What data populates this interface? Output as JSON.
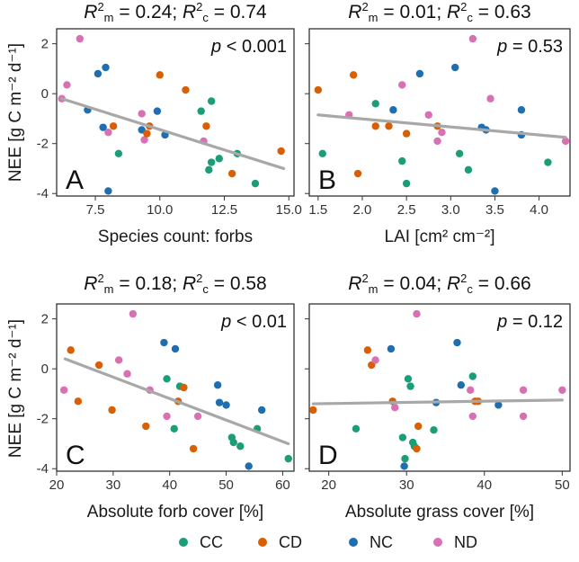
{
  "legend": [
    {
      "key": "CC",
      "label": "CC",
      "color": "#1b9e77"
    },
    {
      "key": "CD",
      "label": "CD",
      "color": "#d95f02"
    },
    {
      "key": "NC",
      "label": "NC",
      "color": "#1f6fb0"
    },
    {
      "key": "ND",
      "label": "ND",
      "color": "#d871b4"
    }
  ],
  "y_label": "NEE [g C m⁻² d⁻¹]",
  "chart_data": [
    {
      "id": "A",
      "type": "scatter",
      "panel_letter": "A",
      "r2_marginal": "0.24",
      "r2_conditional": "0.74",
      "p_label": "p < 0.001",
      "xlabel": "Species count: forbs",
      "ylabel": "NEE [g C m⁻² d⁻¹]",
      "xlim": [
        6,
        15.2
      ],
      "ylim": [
        -4.1,
        2.6
      ],
      "xticks": [
        7.5,
        10.0,
        12.5,
        15.0
      ],
      "xtick_labels": [
        "7.5",
        "10.0",
        "12.5",
        "15.0"
      ],
      "yticks": [
        -4,
        -2,
        0,
        2
      ],
      "ytick_labels": [
        "-4",
        "-2",
        "0",
        "2"
      ],
      "trend": {
        "x": [
          6.2,
          14.8
        ],
        "y": [
          -0.2,
          -3.0
        ]
      },
      "points": [
        {
          "group": "ND",
          "x": 6.9,
          "y": 2.2
        },
        {
          "group": "ND",
          "x": 6.4,
          "y": 0.35
        },
        {
          "group": "ND",
          "x": 6.2,
          "y": -0.2
        },
        {
          "group": "NC",
          "x": 7.6,
          "y": 0.8
        },
        {
          "group": "NC",
          "x": 7.9,
          "y": 1.05
        },
        {
          "group": "NC",
          "x": 7.2,
          "y": -0.65
        },
        {
          "group": "NC",
          "x": 7.8,
          "y": -1.35
        },
        {
          "group": "ND",
          "x": 8.0,
          "y": -1.55
        },
        {
          "group": "CD",
          "x": 8.2,
          "y": -1.3
        },
        {
          "group": "CC",
          "x": 8.4,
          "y": -2.4
        },
        {
          "group": "NC",
          "x": 8.0,
          "y": -3.9
        },
        {
          "group": "ND",
          "x": 9.3,
          "y": -0.8
        },
        {
          "group": "NC",
          "x": 9.3,
          "y": -1.45
        },
        {
          "group": "ND",
          "x": 9.4,
          "y": -1.85
        },
        {
          "group": "CD",
          "x": 9.6,
          "y": -1.3
        },
        {
          "group": "CD",
          "x": 9.5,
          "y": -1.6
        },
        {
          "group": "CD",
          "x": 10.0,
          "y": 0.75
        },
        {
          "group": "NC",
          "x": 9.9,
          "y": -0.7
        },
        {
          "group": "NC",
          "x": 10.2,
          "y": -1.65
        },
        {
          "group": "CD",
          "x": 11.0,
          "y": 0.15
        },
        {
          "group": "CC",
          "x": 11.6,
          "y": -0.7
        },
        {
          "group": "CC",
          "x": 12.0,
          "y": -0.3
        },
        {
          "group": "CD",
          "x": 11.8,
          "y": -1.3
        },
        {
          "group": "ND",
          "x": 11.7,
          "y": -1.9
        },
        {
          "group": "CC",
          "x": 12.0,
          "y": -2.75
        },
        {
          "group": "CC",
          "x": 12.3,
          "y": -2.6
        },
        {
          "group": "CC",
          "x": 11.9,
          "y": -3.05
        },
        {
          "group": "CD",
          "x": 12.8,
          "y": -3.2
        },
        {
          "group": "CC",
          "x": 13.0,
          "y": -2.4
        },
        {
          "group": "CC",
          "x": 13.7,
          "y": -3.6
        },
        {
          "group": "CD",
          "x": 14.7,
          "y": -2.3
        }
      ]
    },
    {
      "id": "B",
      "type": "scatter",
      "panel_letter": "B",
      "r2_marginal": "0.01",
      "r2_conditional": "0.63",
      "p_label": "p = 0.53",
      "xlabel": "LAI [cm² cm⁻²]",
      "ylabel": "",
      "xlim": [
        1.4,
        4.35
      ],
      "ylim": [
        -4.1,
        2.6
      ],
      "xticks": [
        1.5,
        2.0,
        2.5,
        3.0,
        3.5,
        4.0
      ],
      "xtick_labels": [
        "1.5",
        "2.0",
        "2.5",
        "3.0",
        "3.5",
        "4.0"
      ],
      "yticks": [
        -4,
        -2,
        0,
        2
      ],
      "ytick_labels": [
        "",
        "",
        "",
        ""
      ],
      "trend": {
        "x": [
          1.5,
          4.3
        ],
        "y": [
          -0.85,
          -1.75
        ]
      },
      "points": [
        {
          "group": "CD",
          "x": 1.5,
          "y": 0.15
        },
        {
          "group": "CC",
          "x": 1.55,
          "y": -2.4
        },
        {
          "group": "CD",
          "x": 1.9,
          "y": 0.75
        },
        {
          "group": "ND",
          "x": 1.85,
          "y": -0.85
        },
        {
          "group": "CD",
          "x": 1.95,
          "y": -3.2
        },
        {
          "group": "CC",
          "x": 2.15,
          "y": -0.4
        },
        {
          "group": "CD",
          "x": 2.15,
          "y": -1.3
        },
        {
          "group": "NC",
          "x": 2.35,
          "y": -0.65
        },
        {
          "group": "CD",
          "x": 2.3,
          "y": -1.3
        },
        {
          "group": "ND",
          "x": 2.45,
          "y": 0.35
        },
        {
          "group": "CD",
          "x": 2.5,
          "y": -1.6
        },
        {
          "group": "CC",
          "x": 2.45,
          "y": -2.7
        },
        {
          "group": "CC",
          "x": 2.5,
          "y": -3.6
        },
        {
          "group": "NC",
          "x": 2.65,
          "y": 0.8
        },
        {
          "group": "ND",
          "x": 2.75,
          "y": -0.85
        },
        {
          "group": "ND",
          "x": 2.9,
          "y": -1.55
        },
        {
          "group": "ND",
          "x": 2.85,
          "y": -1.9
        },
        {
          "group": "CD",
          "x": 2.85,
          "y": -1.3
        },
        {
          "group": "NC",
          "x": 3.05,
          "y": 1.05
        },
        {
          "group": "CC",
          "x": 3.1,
          "y": -2.4
        },
        {
          "group": "CC",
          "x": 3.2,
          "y": -3.05
        },
        {
          "group": "ND",
          "x": 3.25,
          "y": 2.2
        },
        {
          "group": "NC",
          "x": 3.35,
          "y": -1.35
        },
        {
          "group": "NC",
          "x": 3.4,
          "y": -1.45
        },
        {
          "group": "ND",
          "x": 3.45,
          "y": -0.2
        },
        {
          "group": "NC",
          "x": 3.5,
          "y": -3.9
        },
        {
          "group": "NC",
          "x": 3.8,
          "y": -0.65
        },
        {
          "group": "NC",
          "x": 3.8,
          "y": -1.65
        },
        {
          "group": "CC",
          "x": 4.1,
          "y": -2.75
        },
        {
          "group": "ND",
          "x": 4.3,
          "y": -1.9
        }
      ]
    },
    {
      "id": "C",
      "type": "scatter",
      "panel_letter": "C",
      "r2_marginal": "0.18",
      "r2_conditional": "0.58",
      "p_label": "p < 0.01",
      "xlabel": "Absolute forb cover [%]",
      "ylabel": "NEE [g C m⁻² d⁻¹]",
      "xlim": [
        20,
        62
      ],
      "ylim": [
        -4.1,
        2.6
      ],
      "xticks": [
        20,
        30,
        40,
        50,
        60
      ],
      "xtick_labels": [
        "20",
        "30",
        "40",
        "50",
        "60"
      ],
      "yticks": [
        -4,
        -2,
        0,
        2
      ],
      "ytick_labels": [
        "-4",
        "-2",
        "0",
        "2"
      ],
      "trend": {
        "x": [
          21.5,
          61
        ],
        "y": [
          0.4,
          -3.0
        ]
      },
      "points": [
        {
          "group": "ND",
          "x": 21.3,
          "y": -0.85
        },
        {
          "group": "CD",
          "x": 22.5,
          "y": 0.75
        },
        {
          "group": "CD",
          "x": 23.8,
          "y": -1.3
        },
        {
          "group": "CD",
          "x": 27.5,
          "y": 0.15
        },
        {
          "group": "CD",
          "x": 29.8,
          "y": -1.65
        },
        {
          "group": "ND",
          "x": 31.0,
          "y": 0.35
        },
        {
          "group": "ND",
          "x": 32.5,
          "y": -0.2
        },
        {
          "group": "ND",
          "x": 33.5,
          "y": 2.2
        },
        {
          "group": "CD",
          "x": 35.8,
          "y": -2.3
        },
        {
          "group": "ND",
          "x": 36.5,
          "y": -0.85
        },
        {
          "group": "NC",
          "x": 39.0,
          "y": 1.05
        },
        {
          "group": "CC",
          "x": 39.5,
          "y": -0.4
        },
        {
          "group": "ND",
          "x": 39.5,
          "y": -1.9
        },
        {
          "group": "NC",
          "x": 41.0,
          "y": 0.8
        },
        {
          "group": "CC",
          "x": 40.8,
          "y": -2.4
        },
        {
          "group": "CC",
          "x": 41.8,
          "y": -0.7
        },
        {
          "group": "CD",
          "x": 42.5,
          "y": -0.75
        },
        {
          "group": "CD",
          "x": 41.5,
          "y": -1.3
        },
        {
          "group": "CD",
          "x": 44.2,
          "y": -3.2
        },
        {
          "group": "ND",
          "x": 45.0,
          "y": -1.9
        },
        {
          "group": "NC",
          "x": 48.5,
          "y": -0.65
        },
        {
          "group": "NC",
          "x": 48.8,
          "y": -1.35
        },
        {
          "group": "NC",
          "x": 50.0,
          "y": -1.45
        },
        {
          "group": "CC",
          "x": 51.0,
          "y": -2.75
        },
        {
          "group": "CC",
          "x": 51.3,
          "y": -2.95
        },
        {
          "group": "CC",
          "x": 52.5,
          "y": -3.1
        },
        {
          "group": "NC",
          "x": 54.0,
          "y": -3.9
        },
        {
          "group": "CC",
          "x": 55.5,
          "y": -2.4
        },
        {
          "group": "NC",
          "x": 56.3,
          "y": -1.65
        },
        {
          "group": "CC",
          "x": 61.0,
          "y": -3.6
        }
      ]
    },
    {
      "id": "D",
      "type": "scatter",
      "panel_letter": "D",
      "r2_marginal": "0.04",
      "r2_conditional": "0.66",
      "p_label": "p = 0.12",
      "xlabel": "Absolute grass cover [%]",
      "ylabel": "",
      "xlim": [
        17.5,
        51
      ],
      "ylim": [
        -4.1,
        2.6
      ],
      "xticks": [
        20,
        30,
        40,
        50
      ],
      "xtick_labels": [
        "20",
        "30",
        "40",
        "50"
      ],
      "yticks": [
        -4,
        -2,
        0,
        2
      ],
      "ytick_labels": [
        "",
        "",
        "",
        ""
      ],
      "trend": {
        "x": [
          18,
          50
        ],
        "y": [
          -1.4,
          -1.25
        ]
      },
      "points": [
        {
          "group": "CD",
          "x": 18.0,
          "y": -1.65
        },
        {
          "group": "CC",
          "x": 23.5,
          "y": -2.4
        },
        {
          "group": "CD",
          "x": 25.0,
          "y": 0.75
        },
        {
          "group": "CD",
          "x": 25.5,
          "y": 0.15
        },
        {
          "group": "ND",
          "x": 26.0,
          "y": 0.35
        },
        {
          "group": "NC",
          "x": 28.0,
          "y": 0.8
        },
        {
          "group": "CD",
          "x": 28.2,
          "y": -1.3
        },
        {
          "group": "ND",
          "x": 28.5,
          "y": -1.55
        },
        {
          "group": "CC",
          "x": 29.5,
          "y": -2.75
        },
        {
          "group": "CC",
          "x": 29.8,
          "y": -3.6
        },
        {
          "group": "NC",
          "x": 29.7,
          "y": -3.9
        },
        {
          "group": "CC",
          "x": 30.2,
          "y": -0.4
        },
        {
          "group": "CC",
          "x": 30.5,
          "y": -0.7
        },
        {
          "group": "CC",
          "x": 30.8,
          "y": -2.95
        },
        {
          "group": "CC",
          "x": 31.0,
          "y": -3.1
        },
        {
          "group": "ND",
          "x": 31.3,
          "y": 2.2
        },
        {
          "group": "CD",
          "x": 31.5,
          "y": -2.3
        },
        {
          "group": "CD",
          "x": 31.3,
          "y": -3.2
        },
        {
          "group": "CC",
          "x": 33.5,
          "y": -2.45
        },
        {
          "group": "NC",
          "x": 33.8,
          "y": -1.35
        },
        {
          "group": "NC",
          "x": 36.5,
          "y": 1.05
        },
        {
          "group": "NC",
          "x": 37.0,
          "y": -0.65
        },
        {
          "group": "ND",
          "x": 38.2,
          "y": -0.85
        },
        {
          "group": "CC",
          "x": 38.5,
          "y": -0.3
        },
        {
          "group": "CD",
          "x": 38.8,
          "y": -1.3
        },
        {
          "group": "CD",
          "x": 39.2,
          "y": -1.3
        },
        {
          "group": "ND",
          "x": 38.5,
          "y": -1.9
        },
        {
          "group": "NC",
          "x": 41.8,
          "y": -1.45
        },
        {
          "group": "ND",
          "x": 45.0,
          "y": -1.9
        },
        {
          "group": "ND",
          "x": 45.0,
          "y": -0.85
        },
        {
          "group": "ND",
          "x": 50.0,
          "y": -0.85
        }
      ]
    }
  ]
}
